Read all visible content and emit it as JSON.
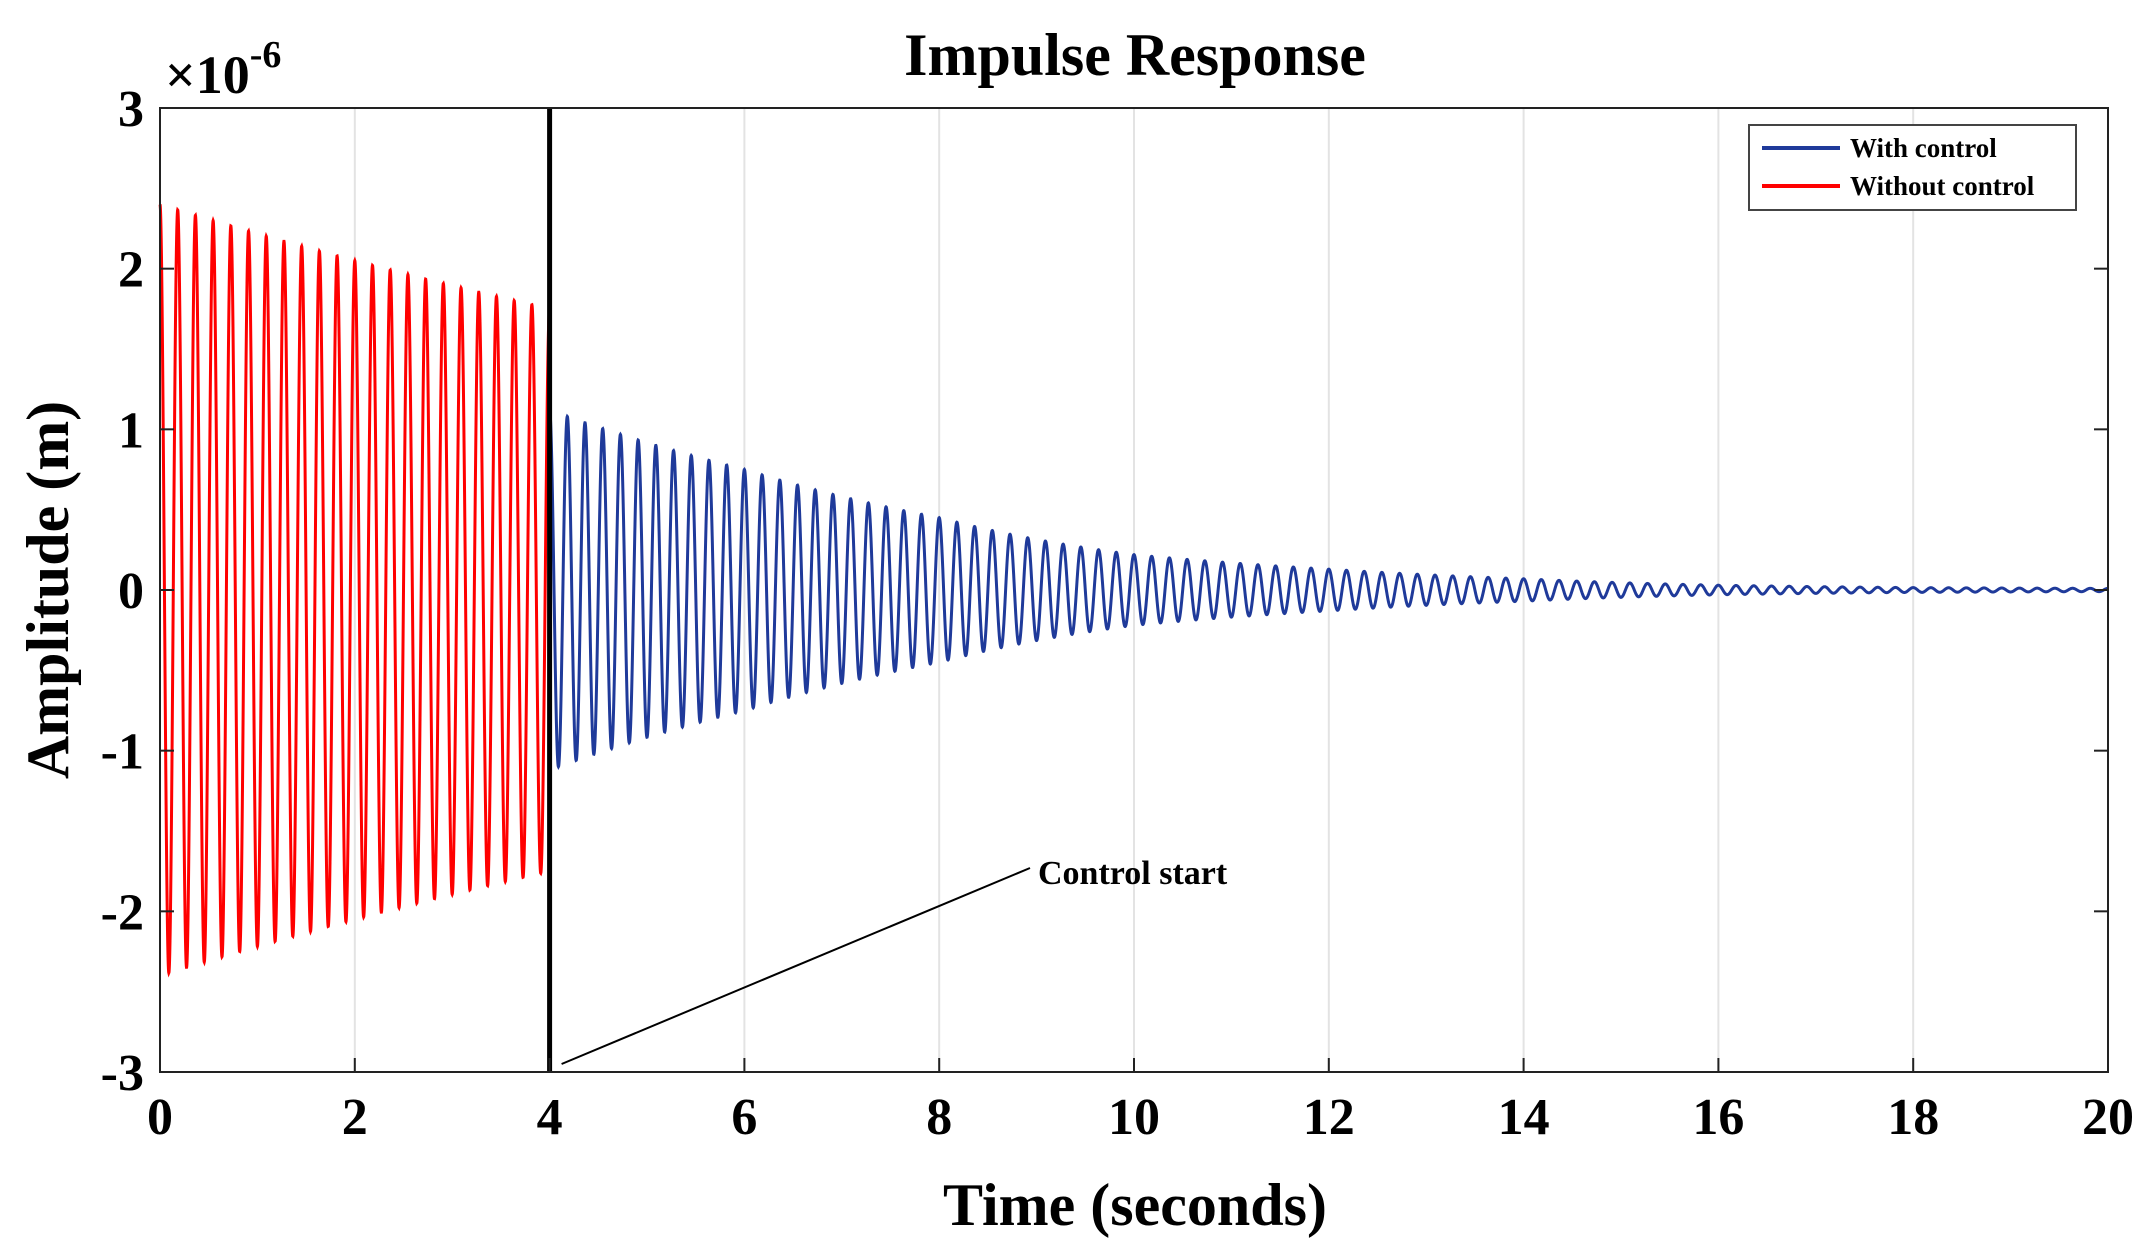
{
  "chart_data": {
    "type": "line",
    "title": "Impulse Response",
    "xlabel": "Time (seconds)",
    "ylabel": "Amplitude (m)",
    "y_multiplier": "×10",
    "y_multiplier_exponent": "-6",
    "xlim": [
      0,
      20
    ],
    "ylim": [
      -3,
      3
    ],
    "grid": "vertical",
    "legend_position": "top-right",
    "x_tick_labels": [
      "0",
      "2",
      "4",
      "6",
      "8",
      "10",
      "12",
      "14",
      "16",
      "18",
      "20"
    ],
    "y_tick_labels": [
      "-3",
      "-2",
      "-1",
      "0",
      "1",
      "2",
      "3"
    ],
    "series": [
      {
        "name": "Without control",
        "color": "#ff0000",
        "t_start": 0,
        "t_end": 4,
        "initial_amplitude": 2.4,
        "amplitude_at_end": 1.75,
        "oscillation_frequency_hz": 5.5
      },
      {
        "name": "With control",
        "color": "#1f3a9a",
        "t_start": 4,
        "t_end": 20,
        "initial_amplitude": 1.12,
        "amplitude_at": [
          [
            6,
            0.75
          ],
          [
            8,
            0.45
          ],
          [
            10,
            0.22
          ],
          [
            12,
            0.13
          ],
          [
            14,
            0.07
          ],
          [
            16,
            0.03
          ],
          [
            18,
            0.015
          ],
          [
            20,
            0.01
          ]
        ],
        "oscillation_frequency_hz": 5.5
      }
    ],
    "vertical_marker": {
      "x": 4,
      "color": "#000000"
    },
    "annotation": {
      "text": "Control start",
      "points_to": [
        4,
        -3
      ]
    }
  }
}
